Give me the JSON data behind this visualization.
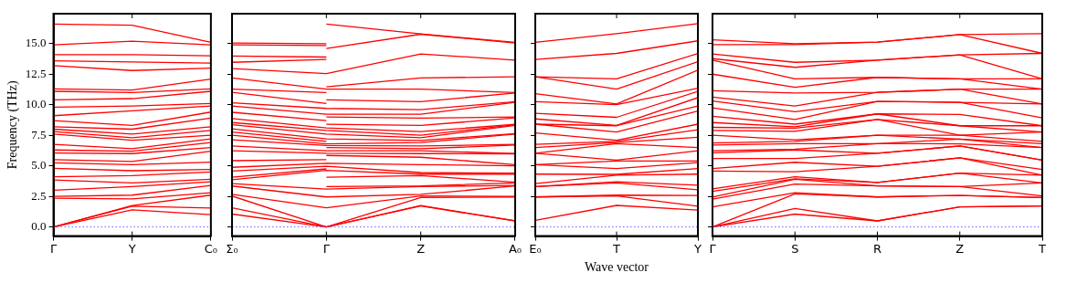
{
  "chart_data": [
    {
      "type": "line",
      "ylabel": "Frequency (THz)",
      "marker": "none",
      "categories": [
        "Γ",
        "Y",
        "C₀"
      ],
      "ylim": [
        -0.75,
        17.45
      ],
      "yticks": [
        {
          "value": 0,
          "label": "0.0"
        },
        {
          "value": 2.5,
          "label": "2.5"
        },
        {
          "value": 5,
          "label": "5.0"
        },
        {
          "value": 7.5,
          "label": "7.5"
        },
        {
          "value": 10,
          "label": "10.0"
        },
        {
          "value": 12.5,
          "label": "12.5"
        },
        {
          "value": 15,
          "label": "15.0"
        }
      ],
      "ref_lines": [
        {
          "axis": "y",
          "value": 0,
          "color": "#6666ff",
          "line_style": "dotted"
        }
      ],
      "series": [
        {
          "color": "#ff0000",
          "values": [
            0,
            1.4,
            1.0
          ]
        },
        {
          "color": "#ff0000",
          "values": [
            0,
            1.7,
            1.55
          ]
        },
        {
          "color": "#ff0000",
          "values": [
            0,
            1.75,
            2.6
          ]
        },
        {
          "color": "#ff0000",
          "values": [
            2.35,
            2.3,
            2.8
          ]
        },
        {
          "color": "#ff0000",
          "values": [
            2.5,
            2.6,
            3.4
          ]
        },
        {
          "color": "#ff0000",
          "values": [
            3.0,
            3.3,
            3.7
          ]
        },
        {
          "color": "#ff0000",
          "values": [
            3.85,
            3.6,
            3.9
          ]
        },
        {
          "color": "#ff0000",
          "values": [
            4.1,
            4.2,
            4.5
          ]
        },
        {
          "color": "#ff0000",
          "values": [
            4.8,
            4.6,
            4.7
          ]
        },
        {
          "color": "#ff0000",
          "values": [
            5.25,
            5.1,
            5.3
          ]
        },
        {
          "color": "#ff0000",
          "values": [
            5.5,
            5.35,
            6.2
          ]
        },
        {
          "color": "#ff0000",
          "values": [
            6.05,
            6.0,
            6.5
          ]
        },
        {
          "color": "#ff0000",
          "values": [
            6.3,
            6.2,
            6.9
          ]
        },
        {
          "color": "#ff0000",
          "values": [
            6.75,
            6.4,
            7.2
          ]
        },
        {
          "color": "#ff0000",
          "values": [
            7.6,
            7.1,
            7.5
          ]
        },
        {
          "color": "#ff0000",
          "values": [
            7.8,
            7.3,
            7.9
          ]
        },
        {
          "color": "#ff0000",
          "values": [
            8.0,
            7.6,
            8.2
          ]
        },
        {
          "color": "#ff0000",
          "values": [
            8.2,
            8.0,
            8.9
          ]
        },
        {
          "color": "#ff0000",
          "values": [
            8.7,
            8.3,
            9.4
          ]
        },
        {
          "color": "#ff0000",
          "values": [
            9.1,
            9.5,
            9.9
          ]
        },
        {
          "color": "#ff0000",
          "values": [
            9.8,
            9.9,
            10.1
          ]
        },
        {
          "color": "#ff0000",
          "values": [
            10.4,
            10.5,
            11.1
          ]
        },
        {
          "color": "#ff0000",
          "values": [
            11.1,
            11.0,
            11.3
          ]
        },
        {
          "color": "#ff0000",
          "values": [
            11.3,
            11.2,
            12.1
          ]
        },
        {
          "color": "#ff0000",
          "values": [
            13.2,
            12.8,
            13.0
          ]
        },
        {
          "color": "#ff0000",
          "values": [
            13.6,
            13.5,
            13.4
          ]
        },
        {
          "color": "#ff0000",
          "values": [
            14.1,
            14.1,
            14.0
          ]
        },
        {
          "color": "#ff0000",
          "values": [
            14.9,
            15.2,
            14.9
          ]
        },
        {
          "color": "#ff0000",
          "values": [
            16.6,
            16.5,
            15.1
          ]
        }
      ]
    },
    {
      "type": "line",
      "marker": "none",
      "tick_labels": "x",
      "categories": [
        "Σ₀",
        "Γ",
        "Z",
        "A₀"
      ],
      "ylim": [
        -0.75,
        17.45
      ],
      "yticks": [
        {
          "value": 0,
          "label": null
        },
        {
          "value": 2.5,
          "label": null
        },
        {
          "value": 5,
          "label": null
        },
        {
          "value": 7.5,
          "label": null
        },
        {
          "value": 10,
          "label": null
        },
        {
          "value": 12.5,
          "label": null
        },
        {
          "value": 15,
          "label": null
        }
      ],
      "ref_lines": [
        {
          "axis": "y",
          "value": 0,
          "color": "#6666ff",
          "line_style": "dotted"
        }
      ],
      "series": [
        {
          "color": "#ff0000",
          "values": [
            1.05,
            0,
            1.71,
            0.49
          ]
        },
        {
          "color": "#ff0000",
          "values": [
            1.56,
            0,
            1.75,
            0.5
          ]
        },
        {
          "color": "#ff0000",
          "values": [
            2.53,
            0,
            2.4,
            2.45
          ]
        },
        {
          "color": "#ff0000",
          "values": [
            2.66,
            1.56,
            2.53,
            2.5
          ]
        },
        {
          "color": "#ff0000",
          "values": [
            3.35,
            2.45,
            2.66,
            3.35
          ]
        },
        {
          "color": "#ff0000",
          "values": [
            3.55,
            3.09,
            3.3,
            3.4
          ]
        },
        {
          "color": "#ff0000",
          "values": [
            3.86,
            4.63,
            4.32,
            4.32
          ]
        },
        {
          "color": "#ff0000",
          "values": [
            4.57,
            4.96,
            4.45,
            4.4
          ]
        },
        {
          "color": "#ff0000",
          "values": [
            4.88,
            5.2,
            5.1,
            5.0
          ]
        },
        {
          "color": "#ff0000",
          "values": [
            6.24,
            6.03,
            6.0,
            5.98
          ]
        },
        {
          "color": "#ff0000",
          "values": [
            6.62,
            6.24,
            6.24,
            6.0
          ]
        },
        {
          "color": "#ff0000",
          "values": [
            7.13,
            6.67,
            6.62,
            6.75
          ]
        },
        {
          "color": "#ff0000",
          "values": [
            7.51,
            6.8,
            6.9,
            7.6
          ]
        },
        {
          "color": "#ff0000",
          "values": [
            8.02,
            7.2,
            7.08,
            7.64
          ]
        },
        {
          "color": "#ff0000",
          "values": [
            8.36,
            7.6,
            7.3,
            8.3
          ]
        },
        {
          "color": "#ff0000",
          "values": [
            8.54,
            7.9,
            7.51,
            8.36
          ]
        },
        {
          "color": "#ff0000",
          "values": [
            8.87,
            8.1,
            7.8,
            8.4
          ]
        },
        {
          "color": "#ff0000",
          "values": [
            9.89,
            9.22,
            9.22,
            10.2
          ]
        },
        {
          "color": "#ff0000",
          "values": [
            10.15,
            9.7,
            9.6,
            10.25
          ]
        },
        {
          "color": "#ff0000",
          "values": [
            12.19,
            11.27,
            11.27,
            11.0
          ]
        },
        {
          "color": "#ff0000",
          "values": [
            12.96,
            12.55,
            14.16,
            13.65
          ]
        },
        {
          "color": "#ff0000",
          "values": [
            4.06,
            4.75,
            null,
            null
          ]
        },
        {
          "color": "#ff0000",
          "values": [
            5.42,
            5.5,
            null,
            null
          ]
        },
        {
          "color": "#ff0000",
          "values": [
            7.77,
            7.0,
            null,
            null
          ]
        },
        {
          "color": "#ff0000",
          "values": [
            9.38,
            8.7,
            null,
            null
          ]
        },
        {
          "color": "#ff0000",
          "values": [
            11.02,
            10.1,
            null,
            null
          ]
        },
        {
          "color": "#ff0000",
          "values": [
            11.27,
            11.0,
            null,
            null
          ]
        },
        {
          "color": "#ff0000",
          "values": [
            13.47,
            13.7,
            null,
            null
          ]
        },
        {
          "color": "#ff0000",
          "values": [
            13.98,
            13.9,
            null,
            null
          ]
        },
        {
          "color": "#ff0000",
          "values": [
            14.9,
            14.85,
            null,
            null
          ]
        },
        {
          "color": "#ff0000",
          "values": [
            15.05,
            15.0,
            null,
            null
          ]
        },
        {
          "color": "#ff0000",
          "values": [
            null,
            3.3,
            3.35,
            3.6
          ]
        },
        {
          "color": "#ff0000",
          "values": [
            null,
            4.06,
            4.2,
            3.65
          ]
        },
        {
          "color": "#ff0000",
          "values": [
            null,
            5.85,
            5.7,
            5.09
          ]
        },
        {
          "color": "#ff0000",
          "values": [
            null,
            6.5,
            6.4,
            6.7
          ]
        },
        {
          "color": "#ff0000",
          "values": [
            null,
            8.4,
            8.3,
            8.92
          ]
        },
        {
          "color": "#ff0000",
          "values": [
            null,
            9.0,
            8.9,
            9.0
          ]
        },
        {
          "color": "#ff0000",
          "values": [
            null,
            10.4,
            10.25,
            10.96
          ]
        },
        {
          "color": "#ff0000",
          "values": [
            null,
            11.47,
            12.19,
            12.29
          ]
        },
        {
          "color": "#ff0000",
          "values": [
            null,
            14.6,
            15.77,
            15.05
          ]
        },
        {
          "color": "#ff0000",
          "values": [
            null,
            16.6,
            15.8,
            15.1
          ]
        }
      ]
    },
    {
      "type": "line",
      "xlabel": "Wave vector",
      "marker": "none",
      "tick_labels": "x",
      "categories": [
        "E₀",
        "T",
        "Y"
      ],
      "ylim": [
        -0.75,
        17.45
      ],
      "yticks": [
        {
          "value": 0,
          "label": null
        },
        {
          "value": 2.5,
          "label": null
        },
        {
          "value": 5,
          "label": null
        },
        {
          "value": 7.5,
          "label": null
        },
        {
          "value": 10,
          "label": null
        },
        {
          "value": 12.5,
          "label": null
        },
        {
          "value": 15,
          "label": null
        }
      ],
      "ref_lines": [
        {
          "axis": "y",
          "value": 0,
          "color": "#6666ff",
          "line_style": "dotted"
        }
      ],
      "series": [
        {
          "color": "#ff0000",
          "values": [
            0.54,
            1.76,
            1.38
          ]
        },
        {
          "color": "#ff0000",
          "values": [
            2.45,
            2.53,
            1.69
          ]
        },
        {
          "color": "#ff0000",
          "values": [
            2.45,
            2.6,
            2.58
          ]
        },
        {
          "color": "#ff0000",
          "values": [
            3.3,
            3.6,
            3.04
          ]
        },
        {
          "color": "#ff0000",
          "values": [
            3.3,
            3.7,
            3.42
          ]
        },
        {
          "color": "#ff0000",
          "values": [
            3.55,
            4.24,
            4.32
          ]
        },
        {
          "color": "#ff0000",
          "values": [
            4.32,
            4.3,
            4.78
          ]
        },
        {
          "color": "#ff0000",
          "values": [
            5.09,
            4.78,
            5.26
          ]
        },
        {
          "color": "#ff0000",
          "values": [
            5.09,
            5.4,
            5.39
          ]
        },
        {
          "color": "#ff0000",
          "values": [
            6.03,
            5.47,
            6.24
          ]
        },
        {
          "color": "#ff0000",
          "values": [
            6.03,
            6.82,
            6.5
          ]
        },
        {
          "color": "#ff0000",
          "values": [
            6.5,
            6.9,
            7.33
          ]
        },
        {
          "color": "#ff0000",
          "values": [
            6.75,
            7.0,
            7.95
          ]
        },
        {
          "color": "#ff0000",
          "values": [
            7.69,
            7.1,
            8.41
          ]
        },
        {
          "color": "#ff0000",
          "values": [
            8.41,
            7.77,
            9.48
          ]
        },
        {
          "color": "#ff0000",
          "values": [
            8.41,
            8.28,
            9.89
          ]
        },
        {
          "color": "#ff0000",
          "values": [
            8.84,
            8.3,
            10.58
          ]
        },
        {
          "color": "#ff0000",
          "values": [
            9.3,
            8.97,
            11.09
          ]
        },
        {
          "color": "#ff0000",
          "values": [
            10.25,
            10.0,
            11.35
          ]
        },
        {
          "color": "#ff0000",
          "values": [
            10.91,
            10.07,
            12.83
          ]
        },
        {
          "color": "#ff0000",
          "values": [
            12.29,
            11.27,
            13.52
          ]
        },
        {
          "color": "#ff0000",
          "values": [
            12.29,
            12.11,
            14.2
          ]
        },
        {
          "color": "#ff0000",
          "values": [
            13.7,
            14.2,
            15.23
          ]
        },
        {
          "color": "#ff0000",
          "values": [
            15.1,
            15.82,
            16.64
          ]
        }
      ]
    },
    {
      "type": "line",
      "marker": "none",
      "tick_labels": "x",
      "categories": [
        "Γ",
        "S",
        "R",
        "Z",
        "T"
      ],
      "ylim": [
        -0.75,
        17.45
      ],
      "yticks": [
        {
          "value": 0,
          "label": null
        },
        {
          "value": 2.5,
          "label": null
        },
        {
          "value": 5,
          "label": null
        },
        {
          "value": 7.5,
          "label": null
        },
        {
          "value": 10,
          "label": null
        },
        {
          "value": 12.5,
          "label": null
        },
        {
          "value": 15,
          "label": null
        }
      ],
      "ref_lines": [
        {
          "axis": "y",
          "value": 0,
          "color": "#6666ff",
          "line_style": "dotted"
        }
      ],
      "series": [
        {
          "color": "#ff0000",
          "values": [
            0,
            1.05,
            0.49,
            1.64,
            1.71
          ]
        },
        {
          "color": "#ff0000",
          "values": [
            0,
            1.51,
            0.49,
            1.64,
            1.71
          ]
        },
        {
          "color": "#ff0000",
          "values": [
            0,
            2.7,
            2.45,
            2.58,
            2.4
          ]
        },
        {
          "color": "#ff0000",
          "values": [
            1.64,
            2.79,
            2.45,
            2.58,
            2.4
          ]
        },
        {
          "color": "#ff0000",
          "values": [
            2.27,
            3.5,
            3.35,
            3.3,
            2.53
          ]
        },
        {
          "color": "#ff0000",
          "values": [
            2.45,
            3.9,
            3.35,
            3.3,
            3.6
          ]
        },
        {
          "color": "#ff0000",
          "values": [
            2.91,
            3.94,
            3.63,
            4.4,
            3.6
          ]
        },
        {
          "color": "#ff0000",
          "values": [
            3.12,
            4.11,
            3.63,
            4.4,
            4.24
          ]
        },
        {
          "color": "#ff0000",
          "values": [
            4.57,
            4.52,
            4.96,
            5.65,
            4.24
          ]
        },
        {
          "color": "#ff0000",
          "values": [
            4.78,
            5.29,
            4.96,
            5.65,
            4.7
          ]
        },
        {
          "color": "#ff0000",
          "values": [
            5.6,
            5.6,
            6.03,
            6.62,
            5.47
          ]
        },
        {
          "color": "#ff0000",
          "values": [
            6.06,
            6.3,
            6.03,
            6.62,
            5.47
          ]
        },
        {
          "color": "#ff0000",
          "values": [
            6.24,
            6.36,
            6.82,
            6.8,
            6.5
          ]
        },
        {
          "color": "#ff0000",
          "values": [
            6.7,
            6.82,
            6.82,
            7.18,
            6.5
          ]
        },
        {
          "color": "#ff0000",
          "values": [
            6.87,
            7.0,
            7.51,
            7.18,
            6.82
          ]
        },
        {
          "color": "#ff0000",
          "values": [
            7.51,
            7.13,
            7.51,
            7.51,
            7.0
          ]
        },
        {
          "color": "#ff0000",
          "values": [
            7.9,
            7.82,
            8.79,
            7.51,
            7.77
          ]
        },
        {
          "color": "#ff0000",
          "values": [
            8.15,
            8.08,
            8.79,
            8.28,
            7.77
          ]
        },
        {
          "color": "#ff0000",
          "values": [
            8.54,
            8.2,
            9.25,
            8.28,
            8.28
          ]
        },
        {
          "color": "#ff0000",
          "values": [
            9.05,
            8.41,
            9.25,
            9.2,
            8.28
          ]
        },
        {
          "color": "#ff0000",
          "values": [
            9.74,
            8.79,
            10.27,
            10.2,
            8.92
          ]
        },
        {
          "color": "#ff0000",
          "values": [
            10.3,
            9.43,
            10.27,
            10.2,
            10.07
          ]
        },
        {
          "color": "#ff0000",
          "values": [
            10.63,
            9.9,
            11.01,
            11.27,
            10.07
          ]
        },
        {
          "color": "#ff0000",
          "values": [
            11.14,
            10.96,
            11.01,
            11.27,
            11.27
          ]
        },
        {
          "color": "#ff0000",
          "values": [
            12.5,
            11.42,
            12.24,
            12.11,
            11.27
          ]
        },
        {
          "color": "#ff0000",
          "values": [
            13.65,
            12.11,
            12.24,
            12.11,
            12.11
          ]
        },
        {
          "color": "#ff0000",
          "values": [
            13.77,
            13.06,
            13.65,
            14.08,
            12.11
          ]
        },
        {
          "color": "#ff0000",
          "values": [
            14.16,
            13.47,
            13.65,
            14.08,
            14.2
          ]
        },
        {
          "color": "#ff0000",
          "values": [
            14.92,
            14.92,
            15.13,
            15.74,
            14.2
          ]
        },
        {
          "color": "#ff0000",
          "values": [
            15.31,
            15.0,
            15.13,
            15.74,
            15.82
          ]
        }
      ]
    }
  ]
}
